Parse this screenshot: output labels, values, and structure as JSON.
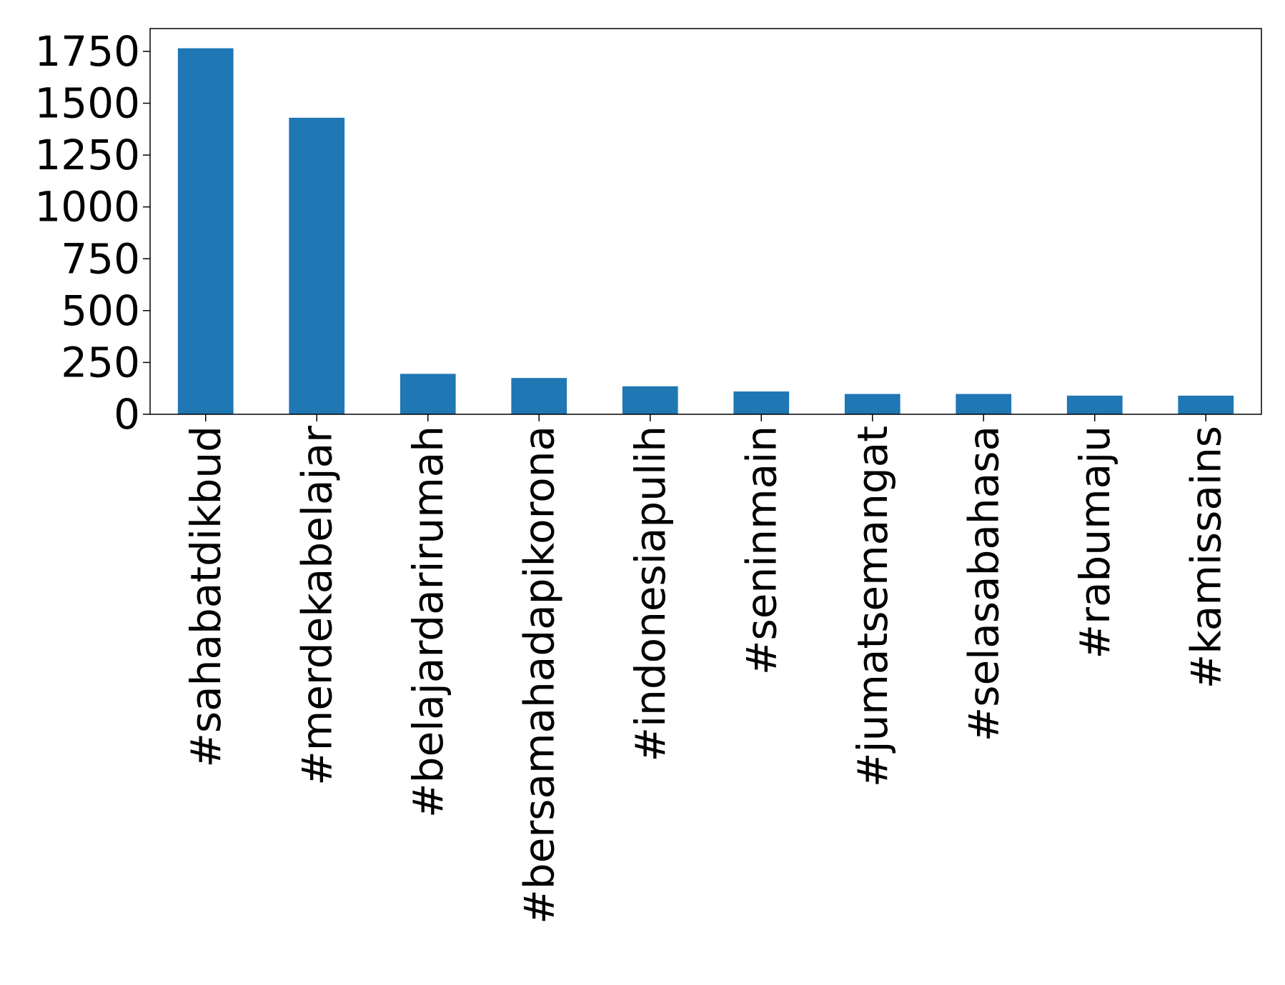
{
  "chart_data": {
    "type": "bar",
    "title": "",
    "xlabel": "",
    "ylabel": "",
    "categories": [
      "#sahabatdikbud",
      "#merdekabelajar",
      "#belajardarirumah",
      "#bersamahadapikorona",
      "#indonesiapulih",
      "#seninmain",
      "#jumatsemangat",
      "#selasabahasa",
      "#rabumaju",
      "#kamissains"
    ],
    "values": [
      1765,
      1430,
      195,
      175,
      135,
      110,
      98,
      98,
      90,
      90
    ],
    "ylim": [
      0,
      1860
    ],
    "yticks": [
      0,
      250,
      500,
      750,
      1000,
      1250,
      1500,
      1750
    ],
    "ytick_labels": [
      "0",
      "250",
      "500",
      "750",
      "1000",
      "1250",
      "1500",
      "1750"
    ],
    "grid": false,
    "legend": "none",
    "bar_color": "#1f77b4"
  }
}
